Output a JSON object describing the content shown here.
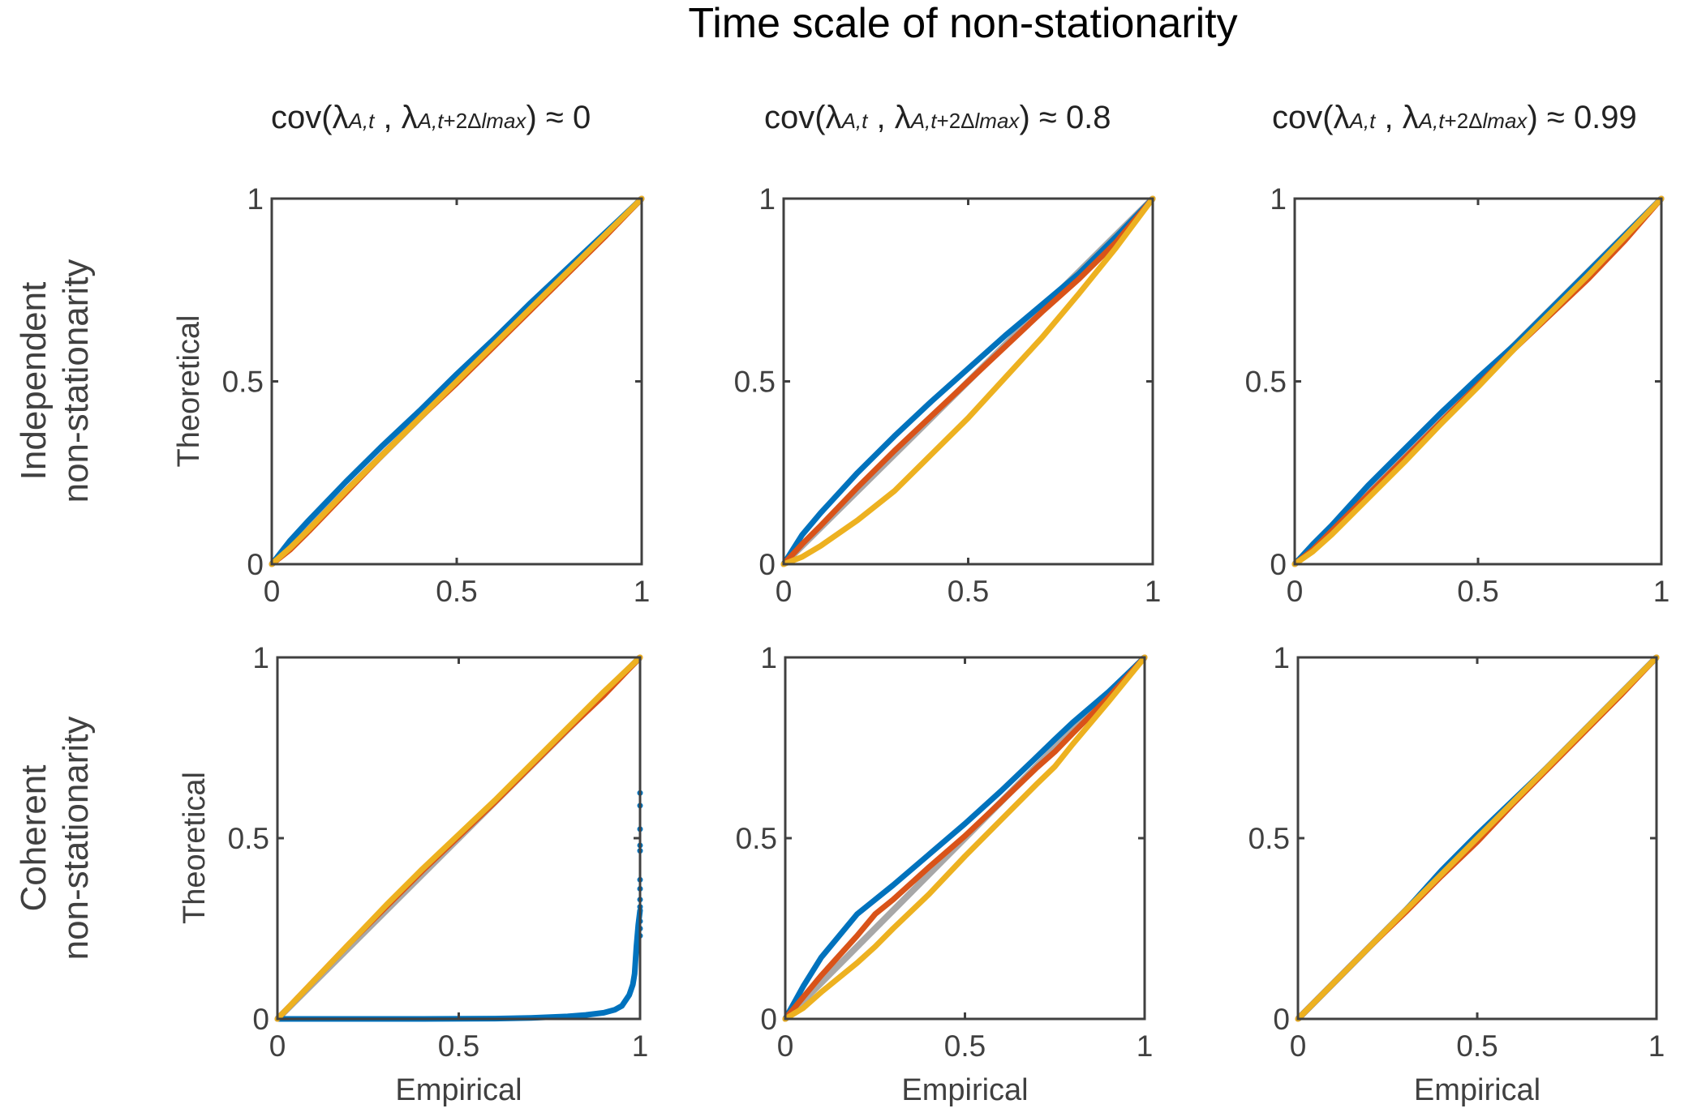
{
  "figure": {
    "title": "Time scale of non-stationarity",
    "column_titles": [
      {
        "prefix": "cov(",
        "lam1": "λ",
        "sub1": "A,t",
        "sep": " , ",
        "lam2": "λ",
        "sub2a": "A,t",
        "sub2b": "+2Δ",
        "sub2c": "lmax",
        "suffix": ") ≈ 0"
      },
      {
        "prefix": "cov(",
        "lam1": "λ",
        "sub1": "A,t",
        "sep": " , ",
        "lam2": "λ",
        "sub2a": "A,t",
        "sub2b": "+2Δ",
        "sub2c": "lmax",
        "suffix": ") ≈ 0.8"
      },
      {
        "prefix": "cov(",
        "lam1": "λ",
        "sub1": "A,t",
        "sep": " , ",
        "lam2": "λ",
        "sub2a": "A,t",
        "sub2b": "+2Δ",
        "sub2c": "lmax",
        "suffix": ") ≈ 0.99"
      }
    ],
    "row_labels": [
      [
        "Independent",
        "non-stationarity"
      ],
      [
        "Coherent",
        "non-stationarity"
      ]
    ],
    "colors": {
      "blue": "#0072BD",
      "orange": "#D95319",
      "yellow": "#EDB120",
      "reference": "#A8A8A8",
      "axis": "#404040"
    }
  },
  "chart_data": [
    {
      "type": "line",
      "panel": "row1-col1",
      "title": "cov(λA,t , λA,t+2Δlmax) ≈ 0",
      "row_label": "Independent non-stationarity",
      "xlabel": "",
      "ylabel": "Theoretical",
      "xlim": [
        0,
        1
      ],
      "ylim": [
        0,
        1
      ],
      "xticks": [
        "0",
        "0.5",
        "1"
      ],
      "yticks": [
        "0",
        "0.5",
        "1"
      ],
      "grid": false,
      "reference": {
        "x": [
          0,
          1
        ],
        "y": [
          0,
          1
        ]
      },
      "series": [
        {
          "name": "blue",
          "color": "#0072BD",
          "x": [
            0,
            0.05,
            0.1,
            0.2,
            0.3,
            0.4,
            0.5,
            0.6,
            0.7,
            0.8,
            0.9,
            1
          ],
          "y": [
            0,
            0.065,
            0.12,
            0.225,
            0.325,
            0.42,
            0.52,
            0.615,
            0.715,
            0.81,
            0.905,
            1
          ]
        },
        {
          "name": "orange",
          "color": "#D95319",
          "x": [
            0,
            0.05,
            0.1,
            0.2,
            0.3,
            0.4,
            0.5,
            0.6,
            0.7,
            0.8,
            0.9,
            1
          ],
          "y": [
            0,
            0.04,
            0.09,
            0.195,
            0.3,
            0.4,
            0.495,
            0.595,
            0.695,
            0.795,
            0.895,
            1
          ]
        },
        {
          "name": "yellow",
          "color": "#EDB120",
          "x": [
            0,
            0.05,
            0.1,
            0.2,
            0.3,
            0.4,
            0.5,
            0.6,
            0.7,
            0.8,
            0.9,
            1
          ],
          "y": [
            0,
            0.045,
            0.095,
            0.2,
            0.3,
            0.4,
            0.5,
            0.6,
            0.7,
            0.8,
            0.9,
            1
          ]
        }
      ]
    },
    {
      "type": "line",
      "panel": "row1-col2",
      "title": "cov(λA,t , λA,t+2Δlmax) ≈ 0.8",
      "row_label": "Independent non-stationarity",
      "xlabel": "",
      "ylabel": "",
      "xlim": [
        0,
        1
      ],
      "ylim": [
        0,
        1
      ],
      "xticks": [
        "0",
        "0.5",
        "1"
      ],
      "yticks": [
        "0",
        "0.5",
        "1"
      ],
      "grid": false,
      "reference": {
        "x": [
          0,
          1
        ],
        "y": [
          0,
          1
        ]
      },
      "series": [
        {
          "name": "blue",
          "color": "#0072BD",
          "x": [
            0,
            0.05,
            0.1,
            0.2,
            0.3,
            0.4,
            0.5,
            0.6,
            0.7,
            0.8,
            0.9,
            1
          ],
          "y": [
            0,
            0.08,
            0.14,
            0.25,
            0.35,
            0.445,
            0.535,
            0.625,
            0.71,
            0.795,
            0.895,
            1
          ]
        },
        {
          "name": "orange",
          "color": "#D95319",
          "x": [
            0,
            0.05,
            0.1,
            0.2,
            0.3,
            0.4,
            0.5,
            0.6,
            0.7,
            0.8,
            0.9,
            1
          ],
          "y": [
            0,
            0.055,
            0.105,
            0.21,
            0.31,
            0.405,
            0.5,
            0.595,
            0.69,
            0.78,
            0.88,
            1
          ]
        },
        {
          "name": "yellow",
          "color": "#EDB120",
          "x": [
            0,
            0.05,
            0.1,
            0.2,
            0.3,
            0.4,
            0.5,
            0.6,
            0.7,
            0.8,
            0.9,
            1
          ],
          "y": [
            0,
            0.02,
            0.05,
            0.12,
            0.2,
            0.3,
            0.4,
            0.51,
            0.62,
            0.74,
            0.865,
            1
          ]
        }
      ]
    },
    {
      "type": "line",
      "panel": "row1-col3",
      "title": "cov(λA,t , λA,t+2Δlmax) ≈ 0.99",
      "row_label": "Independent non-stationarity",
      "xlabel": "",
      "ylabel": "",
      "xlim": [
        0,
        1
      ],
      "ylim": [
        0,
        1
      ],
      "xticks": [
        "0",
        "0.5",
        "1"
      ],
      "yticks": [
        "0",
        "0.5",
        "1"
      ],
      "grid": false,
      "reference": {
        "x": [
          0,
          1
        ],
        "y": [
          0,
          1
        ]
      },
      "series": [
        {
          "name": "blue",
          "color": "#0072BD",
          "x": [
            0,
            0.05,
            0.1,
            0.2,
            0.3,
            0.4,
            0.5,
            0.6,
            0.7,
            0.8,
            0.9,
            1
          ],
          "y": [
            0,
            0.055,
            0.105,
            0.215,
            0.315,
            0.415,
            0.51,
            0.6,
            0.7,
            0.8,
            0.9,
            1
          ]
        },
        {
          "name": "orange",
          "color": "#D95319",
          "x": [
            0,
            0.05,
            0.1,
            0.2,
            0.3,
            0.4,
            0.5,
            0.6,
            0.7,
            0.8,
            0.9,
            1
          ],
          "y": [
            0,
            0.04,
            0.09,
            0.19,
            0.29,
            0.39,
            0.49,
            0.59,
            0.685,
            0.78,
            0.885,
            1
          ]
        },
        {
          "name": "yellow",
          "color": "#EDB120",
          "x": [
            0,
            0.05,
            0.1,
            0.2,
            0.3,
            0.4,
            0.5,
            0.6,
            0.7,
            0.8,
            0.9,
            1
          ],
          "y": [
            0,
            0.035,
            0.08,
            0.18,
            0.28,
            0.385,
            0.485,
            0.59,
            0.69,
            0.79,
            0.895,
            1
          ]
        }
      ]
    },
    {
      "type": "line",
      "panel": "row2-col1",
      "title": "",
      "row_label": "Coherent non-stationarity",
      "xlabel": "Empirical",
      "ylabel": "Theoretical",
      "xlim": [
        0,
        1
      ],
      "ylim": [
        0,
        1
      ],
      "xticks": [
        "0",
        "0.5",
        "1"
      ],
      "yticks": [
        "0",
        "0.5",
        "1"
      ],
      "grid": false,
      "reference": {
        "x": [
          0,
          1
        ],
        "y": [
          0,
          1
        ]
      },
      "series": [
        {
          "name": "blue",
          "color": "#0072BD",
          "x": [
            0,
            0.2,
            0.4,
            0.6,
            0.7,
            0.8,
            0.85,
            0.9,
            0.93,
            0.95,
            0.97,
            0.98,
            0.985,
            0.99,
            0.995,
            1
          ],
          "y": [
            0,
            0,
            0,
            0.001,
            0.003,
            0.007,
            0.011,
            0.017,
            0.025,
            0.036,
            0.066,
            0.095,
            0.125,
            0.2,
            0.26,
            0.3
          ]
        },
        {
          "name": "orange",
          "color": "#D95319",
          "x": [
            0,
            0.1,
            0.2,
            0.3,
            0.4,
            0.5,
            0.6,
            0.7,
            0.8,
            0.9,
            1
          ],
          "y": [
            0,
            0.105,
            0.21,
            0.31,
            0.41,
            0.505,
            0.6,
            0.7,
            0.8,
            0.895,
            1
          ]
        },
        {
          "name": "yellow",
          "color": "#EDB120",
          "x": [
            0,
            0.1,
            0.2,
            0.3,
            0.4,
            0.5,
            0.6,
            0.7,
            0.8,
            0.9,
            1
          ],
          "y": [
            0,
            0.105,
            0.21,
            0.315,
            0.415,
            0.51,
            0.605,
            0.705,
            0.805,
            0.905,
            1
          ]
        }
      ],
      "scatter": {
        "name": "blue-outliers",
        "color": "#0072BD",
        "x": [
          1,
          1,
          1,
          1,
          1,
          1,
          1,
          1,
          1,
          1,
          1,
          1
        ],
        "y": [
          0.625,
          0.59,
          0.525,
          0.48,
          0.465,
          0.385,
          0.36,
          0.33,
          0.31,
          0.27,
          0.25,
          0.23
        ]
      }
    },
    {
      "type": "line",
      "panel": "row2-col2",
      "title": "",
      "row_label": "Coherent non-stationarity",
      "xlabel": "Empirical",
      "ylabel": "",
      "xlim": [
        0,
        1
      ],
      "ylim": [
        0,
        1
      ],
      "xticks": [
        "0",
        "0.5",
        "1"
      ],
      "yticks": [
        "0",
        "0.5",
        "1"
      ],
      "grid": false,
      "reference": {
        "x": [
          0,
          1
        ],
        "y": [
          0,
          1
        ]
      },
      "series": [
        {
          "name": "blue",
          "color": "#0072BD",
          "x": [
            0,
            0.05,
            0.1,
            0.2,
            0.25,
            0.3,
            0.4,
            0.5,
            0.6,
            0.7,
            0.75,
            0.8,
            0.9,
            1
          ],
          "y": [
            0,
            0.09,
            0.17,
            0.29,
            0.33,
            0.37,
            0.455,
            0.54,
            0.63,
            0.725,
            0.773,
            0.82,
            0.905,
            1
          ]
        },
        {
          "name": "orange",
          "color": "#D95319",
          "x": [
            0,
            0.05,
            0.1,
            0.2,
            0.25,
            0.3,
            0.4,
            0.5,
            0.6,
            0.7,
            0.75,
            0.8,
            0.9,
            1
          ],
          "y": [
            0,
            0.06,
            0.12,
            0.23,
            0.29,
            0.33,
            0.42,
            0.506,
            0.6,
            0.695,
            0.739,
            0.79,
            0.89,
            1
          ]
        },
        {
          "name": "yellow",
          "color": "#EDB120",
          "x": [
            0,
            0.05,
            0.1,
            0.2,
            0.25,
            0.3,
            0.4,
            0.5,
            0.6,
            0.7,
            0.75,
            0.8,
            0.9,
            1
          ],
          "y": [
            0,
            0.03,
            0.074,
            0.155,
            0.2,
            0.25,
            0.345,
            0.45,
            0.55,
            0.65,
            0.698,
            0.76,
            0.878,
            1
          ]
        }
      ]
    },
    {
      "type": "line",
      "panel": "row2-col3",
      "title": "",
      "row_label": "Coherent non-stationarity",
      "xlabel": "Empirical",
      "ylabel": "",
      "xlim": [
        0,
        1
      ],
      "ylim": [
        0,
        1
      ],
      "xticks": [
        "0",
        "0.5",
        "1"
      ],
      "yticks": [
        "0",
        "0.5",
        "1"
      ],
      "grid": false,
      "reference": {
        "x": [
          0,
          1
        ],
        "y": [
          0,
          1
        ]
      },
      "series": [
        {
          "name": "blue",
          "color": "#0072BD",
          "x": [
            0,
            0.1,
            0.2,
            0.3,
            0.4,
            0.5,
            0.6,
            0.7,
            0.8,
            0.9,
            1
          ],
          "y": [
            0,
            0.1,
            0.2,
            0.3,
            0.41,
            0.51,
            0.605,
            0.7,
            0.8,
            0.9,
            1
          ]
        },
        {
          "name": "orange",
          "color": "#D95319",
          "x": [
            0,
            0.1,
            0.2,
            0.3,
            0.4,
            0.5,
            0.6,
            0.7,
            0.8,
            0.9,
            1
          ],
          "y": [
            0,
            0.1,
            0.2,
            0.295,
            0.395,
            0.49,
            0.595,
            0.695,
            0.795,
            0.895,
            1
          ]
        },
        {
          "name": "yellow",
          "color": "#EDB120",
          "x": [
            0,
            0.1,
            0.2,
            0.3,
            0.4,
            0.5,
            0.6,
            0.7,
            0.8,
            0.9,
            1
          ],
          "y": [
            0,
            0.1,
            0.2,
            0.3,
            0.4,
            0.5,
            0.6,
            0.7,
            0.8,
            0.9,
            1
          ]
        }
      ]
    }
  ]
}
